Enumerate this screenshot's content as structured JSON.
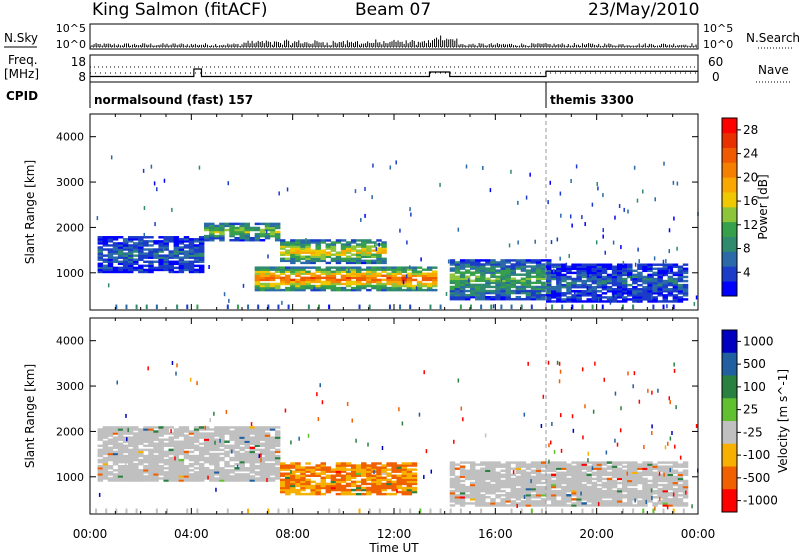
{
  "header": {
    "station": "King Salmon (fitACF)",
    "beam": "Beam 07",
    "date": "23/May/2010"
  },
  "strip": {
    "nsky_label": "N.Sky",
    "nsearch_label": "N.Search",
    "freq_label_line1": "Freq.",
    "freq_label_line2": "[MHz]",
    "nave_label": "Nave",
    "cpid_label": "CPID",
    "nsky_ticks": [
      "10^5",
      "10^0"
    ],
    "nsearch_ticks": [
      "10^5",
      "10^0"
    ],
    "freq_ticks": [
      "18",
      "8"
    ],
    "nave_ticks": [
      "60",
      "0"
    ],
    "cpid_segments": [
      {
        "label": "normalsound (fast) 157",
        "start_h": 0,
        "end_h": 18
      },
      {
        "label": "themis 3300",
        "start_h": 18,
        "end_h": 24
      }
    ],
    "freq_trace": [
      {
        "h": 0,
        "f": 11
      },
      {
        "h": 4.1,
        "f": 11
      },
      {
        "h": 4.1,
        "f": 16
      },
      {
        "h": 4.4,
        "f": 16
      },
      {
        "h": 4.4,
        "f": 11
      },
      {
        "h": 13.4,
        "f": 11
      },
      {
        "h": 13.4,
        "f": 14
      },
      {
        "h": 14.2,
        "f": 14
      },
      {
        "h": 14.2,
        "f": 11
      },
      {
        "h": 18,
        "f": 11
      },
      {
        "h": 18,
        "f": 14.5
      },
      {
        "h": 24,
        "f": 14.5
      }
    ]
  },
  "chart_data": [
    {
      "type": "heatmap",
      "panel": "power",
      "ylabel": "Slant Range [km]",
      "xlabel": "Time UT",
      "x_ticks": [
        "00:00",
        "04:00",
        "08:00",
        "12:00",
        "16:00",
        "20:00",
        "00:00"
      ],
      "xlim_hours": [
        0,
        24
      ],
      "y_ticks": [
        1000,
        2000,
        3000,
        4000
      ],
      "ylim_km": [
        180,
        4500
      ],
      "colorbar": {
        "label": "Power [dB]",
        "ticks": [
          4,
          8,
          12,
          16,
          20,
          24,
          28
        ],
        "range": [
          0,
          30
        ],
        "colors": [
          "#0000ff",
          "#1b3cc8",
          "#2a6aa8",
          "#2f8a6e",
          "#36a04a",
          "#8cc43a",
          "#f0c800",
          "#f8a800",
          "#f58000",
          "#f05a00",
          "#e83000",
          "#ff0000"
        ]
      },
      "features": [
        {
          "desc": "echo band",
          "t": [
            0.3,
            4.5
          ],
          "range": [
            1000,
            1800
          ],
          "power": 6
        },
        {
          "desc": "echo band",
          "t": [
            4.5,
            7.5
          ],
          "range": [
            1700,
            2100
          ],
          "power": 14
        },
        {
          "desc": "echo band",
          "t": [
            7.5,
            11.5
          ],
          "range": [
            1200,
            1700
          ],
          "power": 18
        },
        {
          "desc": "echo band",
          "t": [
            6.5,
            13.5
          ],
          "range": [
            600,
            1100
          ],
          "power": 24
        },
        {
          "desc": "echo band",
          "t": [
            14.2,
            18
          ],
          "range": [
            400,
            1300
          ],
          "power": 12
        },
        {
          "desc": "echo band",
          "t": [
            18,
            23.5
          ],
          "range": [
            350,
            1200
          ],
          "power": 6
        }
      ]
    },
    {
      "type": "heatmap",
      "panel": "velocity",
      "ylabel": "Slant Range [km]",
      "xlabel": "Time UT",
      "x_ticks": [
        "00:00",
        "04:00",
        "08:00",
        "12:00",
        "16:00",
        "20:00",
        "00:00"
      ],
      "xlim_hours": [
        0,
        24
      ],
      "y_ticks": [
        1000,
        2000,
        3000,
        4000
      ],
      "ylim_km": [
        180,
        4500
      ],
      "colorbar": {
        "label": "Velocity [m s^-1]",
        "ticks": [
          "1000",
          "500",
          "100",
          "25",
          "-25",
          "-100",
          "-500",
          "-1000"
        ],
        "colors": [
          "#0000c0",
          "#2060a0",
          "#2a8040",
          "#60c030",
          "#c0c0c0",
          "#f8b000",
          "#f06000",
          "#ff0000"
        ]
      },
      "features": [
        {
          "desc": "ground scatter",
          "t": [
            0.3,
            7.5
          ],
          "range": [
            900,
            2100
          ],
          "velocity": 0
        },
        {
          "desc": "ionospheric echo",
          "t": [
            7.5,
            12.8
          ],
          "range": [
            600,
            1300
          ],
          "velocity": -100
        },
        {
          "desc": "ground scatter",
          "t": [
            14.2,
            23.5
          ],
          "range": [
            350,
            1300
          ],
          "velocity": 0
        }
      ]
    }
  ]
}
